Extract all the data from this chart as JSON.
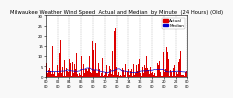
{
  "title": "Milwaukee Weather Wind Speed  Actual and Median  by Minute  (24 Hours) (Old)",
  "background_color": "#f8f8f8",
  "plot_bg": "#ffffff",
  "bar_color": "#dd0000",
  "line_color": "#0000cc",
  "legend_actual": "Actual",
  "legend_median": "Median",
  "ylim": [
    0,
    30
  ],
  "yticks": [
    0,
    5,
    10,
    15,
    20,
    25,
    30
  ],
  "n_minutes": 1440,
  "seed": 42,
  "grid_color": "#aaaaaa",
  "title_fontsize": 3.8,
  "tick_fontsize": 2.8,
  "legend_fontsize": 3.0
}
